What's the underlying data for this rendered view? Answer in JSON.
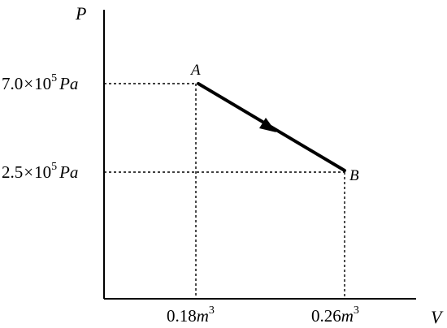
{
  "axes": {
    "y_label": "P",
    "x_label": "V"
  },
  "ticks": {
    "p_high": {
      "mantissa": "7.0",
      "times": "×",
      "base": "10",
      "exp": "5",
      "unit": "Pa"
    },
    "p_low": {
      "mantissa": "2.5",
      "times": "×",
      "base": "10",
      "exp": "5",
      "unit": "Pa"
    },
    "v_a": {
      "value": "0.18",
      "unit": "m",
      "exp": "3"
    },
    "v_b": {
      "value": "0.26",
      "unit": "m",
      "exp": "3"
    }
  },
  "points": {
    "a": {
      "label": "A",
      "v": 0.18,
      "p": 700000.0
    },
    "b": {
      "label": "B",
      "v": 0.26,
      "p": 250000.0
    }
  },
  "process": {
    "from": "A",
    "to": "B",
    "direction": "A-to-B"
  }
}
